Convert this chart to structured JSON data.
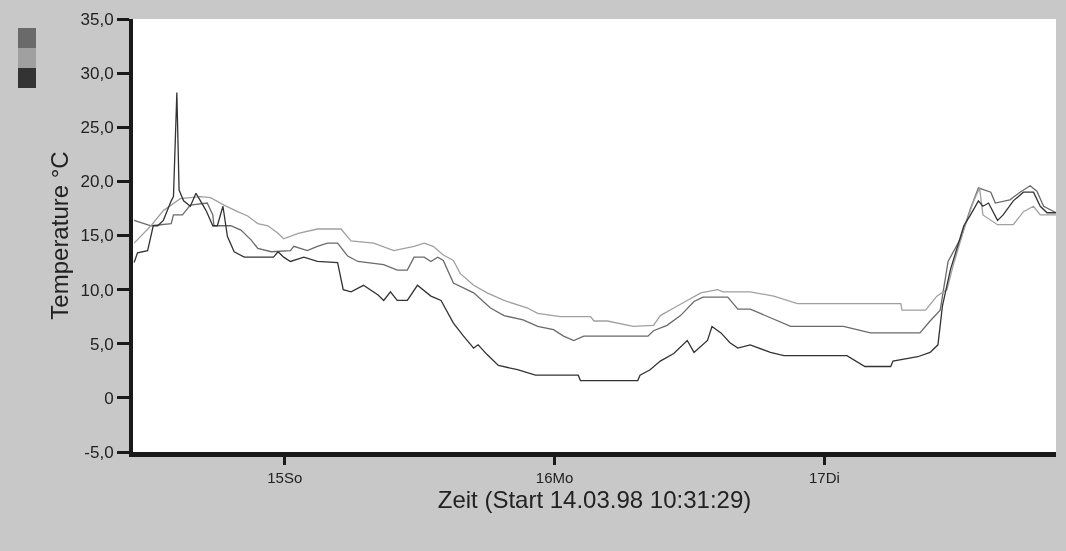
{
  "chart_data": {
    "type": "line",
    "xlabel": "Zeit (Start 14.03.98 10:31:29)",
    "ylabel": "Temperature °C",
    "xlim": [
      "--03-14T10:30",
      "--03-17T20:36"
    ],
    "xticks": [
      {
        "value": "--03-15",
        "label": "15So"
      },
      {
        "value": "--03-16",
        "label": "16Mo"
      },
      {
        "value": "--03-17",
        "label": "17Di"
      }
    ],
    "ylim": [
      -5,
      35
    ],
    "yticks": [
      {
        "value": -5,
        "label": "-5,0"
      },
      0,
      {
        "value": 5,
        "label": "5,0"
      },
      {
        "value": 10,
        "label": "10,0"
      },
      {
        "value": 15,
        "label": "15,0"
      },
      {
        "value": 20,
        "label": "20,0"
      },
      {
        "value": 25,
        "label": "25,0"
      },
      {
        "value": 30,
        "label": "30,0"
      },
      {
        "value": 35,
        "label": "35,0"
      }
    ],
    "grid": false,
    "marker": "none",
    "line_style": "solid",
    "series": [
      {
        "color": "#6a6a6a",
        "x": [
          "--03-14T10:36",
          "--03-14T12:06",
          "--03-14T13:54",
          "--03-14T14:06",
          "--03-14T14:54",
          "--03-14T15:36",
          "--03-14T17:06",
          "--03-14T17:36",
          "--03-14T17:42",
          "--03-14T19:12",
          "--03-14T20:06",
          "--03-14T21:00",
          "--03-14T21:36",
          "--03-14T22:48",
          "--03-15T00:30",
          "--03-15T00:48",
          "--03-15T02:00",
          "--03-15T02:54",
          "--03-15T03:48",
          "--03-15T04:42",
          "--03-15T05:36",
          "--03-15T06:30",
          "--03-15T08:48",
          "--03-15T10:00",
          "--03-15T10:54",
          "--03-15T11:30",
          "--03-15T12:24",
          "--03-15T13:00",
          "--03-15T13:36",
          "--03-15T14:06",
          "--03-15T15:00",
          "--03-15T16:48",
          "--03-15T18:18",
          "--03-15T19:30",
          "--03-15T21:12",
          "--03-15T22:30",
          "--03-15T23:54",
          "--03-16T00:48",
          "--03-16T01:42",
          "--03-16T02:36",
          "--03-16T08:18",
          "--03-16T08:48",
          "--03-16T10:00",
          "--03-16T11:12",
          "--03-16T12:24",
          "--03-16T13:12",
          "--03-16T15:24",
          "--03-16T16:18",
          "--03-16T17:24",
          "--03-16T18:18",
          "--03-16T19:12",
          "--03-16T21:00",
          "--03-17T01:42",
          "--03-17T04:06",
          "--03-17T08:30",
          "--03-17T09:24",
          "--03-17T10:18",
          "--03-17T11:00",
          "--03-17T12:06",
          "--03-17T13:00",
          "--03-17T13:42",
          "--03-17T14:48",
          "--03-17T15:12",
          "--03-17T16:30",
          "--03-17T17:24",
          "--03-17T18:18",
          "--03-17T18:54",
          "--03-17T19:30",
          "--03-17T20:36"
        ],
        "values": [
          16.4,
          15.9,
          16.1,
          16.9,
          16.9,
          17.8,
          18.0,
          16.9,
          15.9,
          15.9,
          15.5,
          14.6,
          13.8,
          13.5,
          13.6,
          14.0,
          13.6,
          14.0,
          14.3,
          14.3,
          13.1,
          12.6,
          12.3,
          11.8,
          11.8,
          13.0,
          13.0,
          12.6,
          13.0,
          12.7,
          10.6,
          9.7,
          8.3,
          7.6,
          7.2,
          6.6,
          6.3,
          5.7,
          5.3,
          5.7,
          5.7,
          6.2,
          6.7,
          7.6,
          8.9,
          9.3,
          9.3,
          8.2,
          8.2,
          7.8,
          7.4,
          6.6,
          6.6,
          6.0,
          6.0,
          7.1,
          8.1,
          12.6,
          14.7,
          17.5,
          19.4,
          19.0,
          18.0,
          18.3,
          19.0,
          19.6,
          19.1,
          17.7,
          17.1
        ]
      },
      {
        "color": "#a0a0a0",
        "x": [
          "--03-14T10:36",
          "--03-14T12:06",
          "--03-14T13:12",
          "--03-14T14:42",
          "--03-14T16:30",
          "--03-14T17:24",
          "--03-14T18:36",
          "--03-14T19:48",
          "--03-14T20:42",
          "--03-14T21:36",
          "--03-14T22:30",
          "--03-14T23:24",
          "--03-14T23:54",
          "--03-15T01:12",
          "--03-15T02:54",
          "--03-15T05:00",
          "--03-15T05:54",
          "--03-15T07:54",
          "--03-15T09:42",
          "--03-15T11:30",
          "--03-15T12:24",
          "--03-15T13:12",
          "--03-15T14:06",
          "--03-15T15:00",
          "--03-15T15:36",
          "--03-15T16:48",
          "--03-15T18:00",
          "--03-15T19:30",
          "--03-15T21:36",
          "--03-15T22:30",
          "--03-16T00:30",
          "--03-16T03:12",
          "--03-16T03:30",
          "--03-16T04:42",
          "--03-16T07:00",
          "--03-16T08:48",
          "--03-16T09:24",
          "--03-16T10:36",
          "--03-16T11:48",
          "--03-16T13:00",
          "--03-16T14:30",
          "--03-16T15:00",
          "--03-16T17:24",
          "--03-16T19:30",
          "--03-16T21:36",
          "--03-17T06:48",
          "--03-17T06:54",
          "--03-17T09:00",
          "--03-17T10:00",
          "--03-17T10:54",
          "--03-17T11:30",
          "--03-17T12:24",
          "--03-17T13:12",
          "--03-17T13:48",
          "--03-17T14:06",
          "--03-17T15:24",
          "--03-17T16:48",
          "--03-17T17:42",
          "--03-17T18:36",
          "--03-17T19:12",
          "--03-17T20:36"
        ],
        "values": [
          14.3,
          15.9,
          17.3,
          18.4,
          18.6,
          18.5,
          17.8,
          17.2,
          16.8,
          16.1,
          15.9,
          15.2,
          14.7,
          15.2,
          15.6,
          15.6,
          14.5,
          14.3,
          13.6,
          14.0,
          14.3,
          14.0,
          13.2,
          12.7,
          11.5,
          10.4,
          9.7,
          9.0,
          8.3,
          7.8,
          7.5,
          7.5,
          7.1,
          7.1,
          6.6,
          6.7,
          7.6,
          8.3,
          9.0,
          9.7,
          10.0,
          9.8,
          9.8,
          9.4,
          8.7,
          8.7,
          8.1,
          8.1,
          9.4,
          10.0,
          12.4,
          15.5,
          18.0,
          19.4,
          16.9,
          16.0,
          16.0,
          17.2,
          17.7,
          16.9,
          16.9
        ]
      },
      {
        "color": "#333333",
        "x": [
          "--03-14T10:36",
          "--03-14T10:54",
          "--03-14T11:48",
          "--03-14T12:18",
          "--03-14T12:42",
          "--03-14T13:12",
          "--03-14T13:54",
          "--03-14T14:06",
          "--03-14T14:24",
          "--03-14T14:36",
          "--03-14T15:00",
          "--03-14T15:36",
          "--03-14T16:06",
          "--03-14T16:30",
          "--03-14T17:00",
          "--03-14T17:36",
          "--03-14T18:00",
          "--03-14T18:30",
          "--03-14T18:54",
          "--03-14T19:30",
          "--03-14T20:24",
          "--03-14T23:00",
          "--03-14T23:24",
          "--03-14T23:54",
          "--03-15T00:30",
          "--03-15T01:42",
          "--03-15T02:54",
          "--03-15T04:42",
          "--03-15T05:12",
          "--03-15T05:54",
          "--03-15T07:00",
          "--03-15T08:18",
          "--03-15T08:48",
          "--03-15T09:24",
          "--03-15T10:00",
          "--03-15T10:54",
          "--03-15T11:48",
          "--03-15T13:00",
          "--03-15T13:54",
          "--03-15T15:00",
          "--03-15T15:54",
          "--03-15T16:48",
          "--03-15T17:12",
          "--03-15T18:00",
          "--03-15T19:00",
          "--03-15T20:42",
          "--03-15T22:18",
          "--03-16T02:06",
          "--03-16T02:18",
          "--03-16T07:24",
          "--03-16T07:36",
          "--03-16T08:30",
          "--03-16T09:24",
          "--03-16T10:36",
          "--03-16T11:48",
          "--03-16T12:24",
          "--03-16T13:36",
          "--03-16T14:00",
          "--03-16T14:48",
          "--03-16T15:36",
          "--03-16T16:18",
          "--03-16T17:24",
          "--03-16T19:12",
          "--03-16T20:24",
          "--03-17T02:00",
          "--03-17T03:36",
          "--03-17T05:54",
          "--03-17T06:06",
          "--03-17T08:18",
          "--03-17T09:24",
          "--03-17T10:06",
          "--03-17T10:30",
          "--03-17T11:12",
          "--03-17T12:24",
          "--03-17T13:00",
          "--03-17T13:42",
          "--03-17T14:06",
          "--03-17T14:36",
          "--03-17T15:24",
          "--03-17T15:54",
          "--03-17T16:48",
          "--03-17T17:42",
          "--03-17T18:36",
          "--03-17T19:12",
          "--03-17T19:48",
          "--03-17T20:36"
        ],
        "values": [
          12.5,
          13.4,
          13.6,
          15.9,
          15.9,
          16.4,
          18.2,
          18.6,
          28.2,
          19.2,
          18.2,
          17.7,
          18.9,
          18.2,
          17.3,
          15.9,
          15.9,
          17.7,
          14.9,
          13.5,
          13.0,
          13.0,
          13.5,
          13.0,
          12.6,
          13.0,
          12.6,
          12.5,
          10.0,
          9.8,
          10.4,
          9.5,
          9.0,
          9.8,
          9.0,
          9.0,
          10.4,
          9.4,
          9.0,
          6.9,
          5.7,
          4.6,
          4.9,
          4.0,
          3.0,
          2.6,
          2.1,
          2.1,
          1.6,
          1.6,
          2.1,
          2.6,
          3.4,
          4.1,
          5.3,
          4.2,
          5.3,
          6.6,
          6.0,
          5.1,
          4.6,
          4.9,
          4.2,
          3.9,
          3.9,
          2.9,
          2.9,
          3.4,
          3.8,
          4.2,
          4.9,
          8.5,
          11.8,
          15.9,
          16.9,
          18.2,
          17.7,
          18.0,
          16.4,
          16.9,
          18.2,
          19.0,
          19.0,
          17.7,
          17.1,
          17.1
        ]
      }
    ]
  }
}
